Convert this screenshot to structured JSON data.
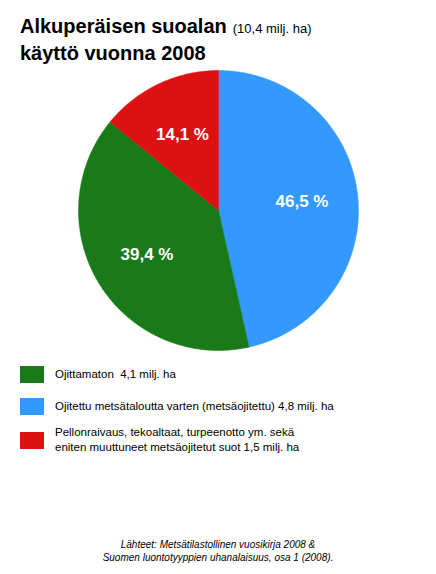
{
  "chart_data": {
    "type": "pie",
    "title": [
      "Alkuperäisen suoalan",
      "käyttö vuonna 2008"
    ],
    "subtitle": "(10,4 milj. ha)",
    "values": [
      46.5,
      39.4,
      14.1
    ],
    "value_labels": [
      "46,5 %",
      "39,4 %",
      "14,1 %"
    ],
    "colors": [
      "#3399FF",
      "#1A7A1A",
      "#DD1111"
    ],
    "data_labels": true,
    "legend_items": [
      {
        "name": "Ojittamaton  4,1 milj. ha",
        "color": "#1A7A1A"
      },
      {
        "name": "Ojitettu metsätaloutta varten (metsäojitettu) 4,8 milj. ha",
        "color": "#3399FF"
      },
      {
        "name": "Pellonraivaus, tekoaltaat, turpeenotto ym. sekä\neniten muuttuneet metsäojitetut suot 1,5 milj. ha",
        "color": "#DD1111"
      }
    ],
    "caption": "Lähteet: Metsätilastollinen vuosikirja 2008 &\nSuomen luontotyyppien uhanalaisuus, osa 1 (2008)."
  }
}
